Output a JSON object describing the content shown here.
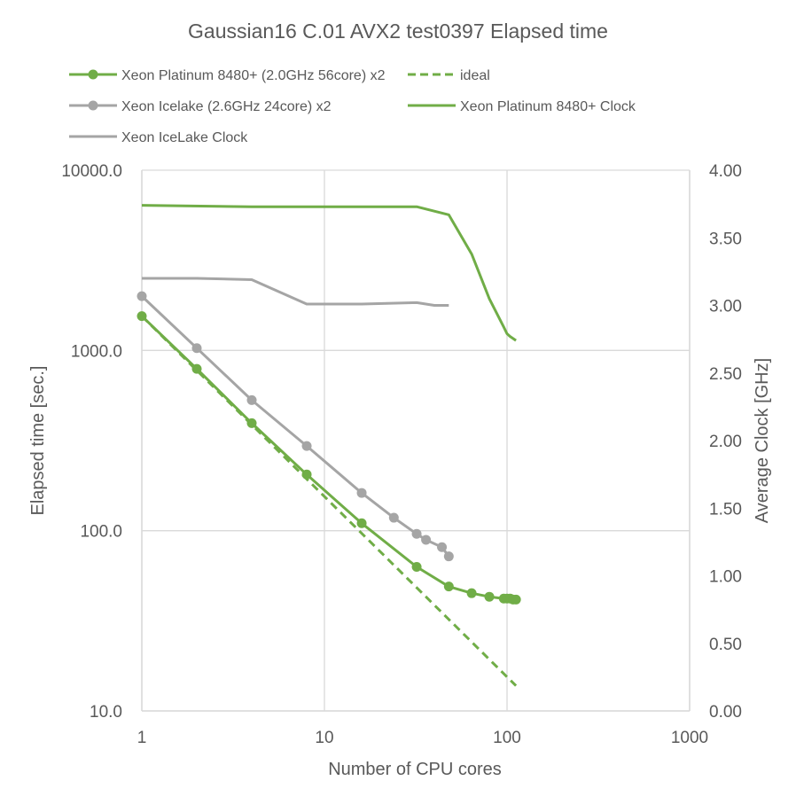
{
  "chart_data": {
    "type": "line",
    "title": "Gaussian16 C.01 AVX2 test0397 Elapsed time",
    "xlabel": "Number of CPU cores",
    "ylabel": "Elapsed time [sec.]",
    "y2label": "Average Clock [GHz]",
    "x_scale": "log",
    "y_scale": "log",
    "xlim": [
      1,
      1000
    ],
    "ylim": [
      10,
      10000
    ],
    "y2lim": [
      0,
      4
    ],
    "x_ticks": [
      "1",
      "10",
      "100",
      "1000"
    ],
    "y_ticks": [
      "10.0",
      "100.0",
      "1000.0",
      "10000.0"
    ],
    "y2_ticks": [
      "0.00",
      "0.50",
      "1.00",
      "1.50",
      "2.00",
      "2.50",
      "3.00",
      "3.50",
      "4.00"
    ],
    "grid": true,
    "legend_position": "top",
    "colors": {
      "green": "#70AD47",
      "gray": "#A5A5A5",
      "text": "#595959",
      "grid": "#D9D9D9"
    },
    "series": [
      {
        "name": "Xeon Platinum 8480+ (2.0GHz 56core) x2",
        "axis": "left",
        "color": "#70AD47",
        "style": "solid",
        "markers": true,
        "x": [
          1,
          2,
          4,
          8,
          16,
          32,
          48,
          64,
          80,
          96,
          100,
          104,
          108,
          112
        ],
        "y": [
          1550,
          790,
          395,
          205,
          110,
          63,
          49,
          45,
          43,
          42,
          42,
          42,
          41.5,
          41.5
        ]
      },
      {
        "name": "ideal",
        "axis": "left",
        "color": "#70AD47",
        "style": "dashed",
        "markers": false,
        "x": [
          1,
          112
        ],
        "y": [
          1550,
          13.8
        ]
      },
      {
        "name": "Xeon Icelake (2.6GHz 24core) x2",
        "axis": "left",
        "color": "#A5A5A5",
        "style": "solid",
        "markers": true,
        "x": [
          1,
          2,
          4,
          8,
          16,
          24,
          32,
          36,
          44,
          48
        ],
        "y": [
          2000,
          1030,
          530,
          295,
          162,
          118,
          96,
          89,
          81,
          72
        ]
      },
      {
        "name": "Xeon Platinum 8480+ Clock",
        "axis": "right",
        "color": "#70AD47",
        "style": "solid",
        "markers": false,
        "x": [
          1,
          4,
          8,
          16,
          32,
          48,
          64,
          80,
          96,
          100,
          104,
          112
        ],
        "y": [
          3.74,
          3.73,
          3.73,
          3.73,
          3.73,
          3.67,
          3.38,
          3.05,
          2.84,
          2.79,
          2.77,
          2.74
        ]
      },
      {
        "name": "Xeon IceLake Clock",
        "axis": "right",
        "color": "#A5A5A5",
        "style": "solid",
        "markers": false,
        "x": [
          1,
          2,
          4,
          8,
          16,
          32,
          40,
          48
        ],
        "y": [
          3.2,
          3.2,
          3.19,
          3.01,
          3.01,
          3.02,
          3.0,
          3.0
        ]
      }
    ]
  }
}
